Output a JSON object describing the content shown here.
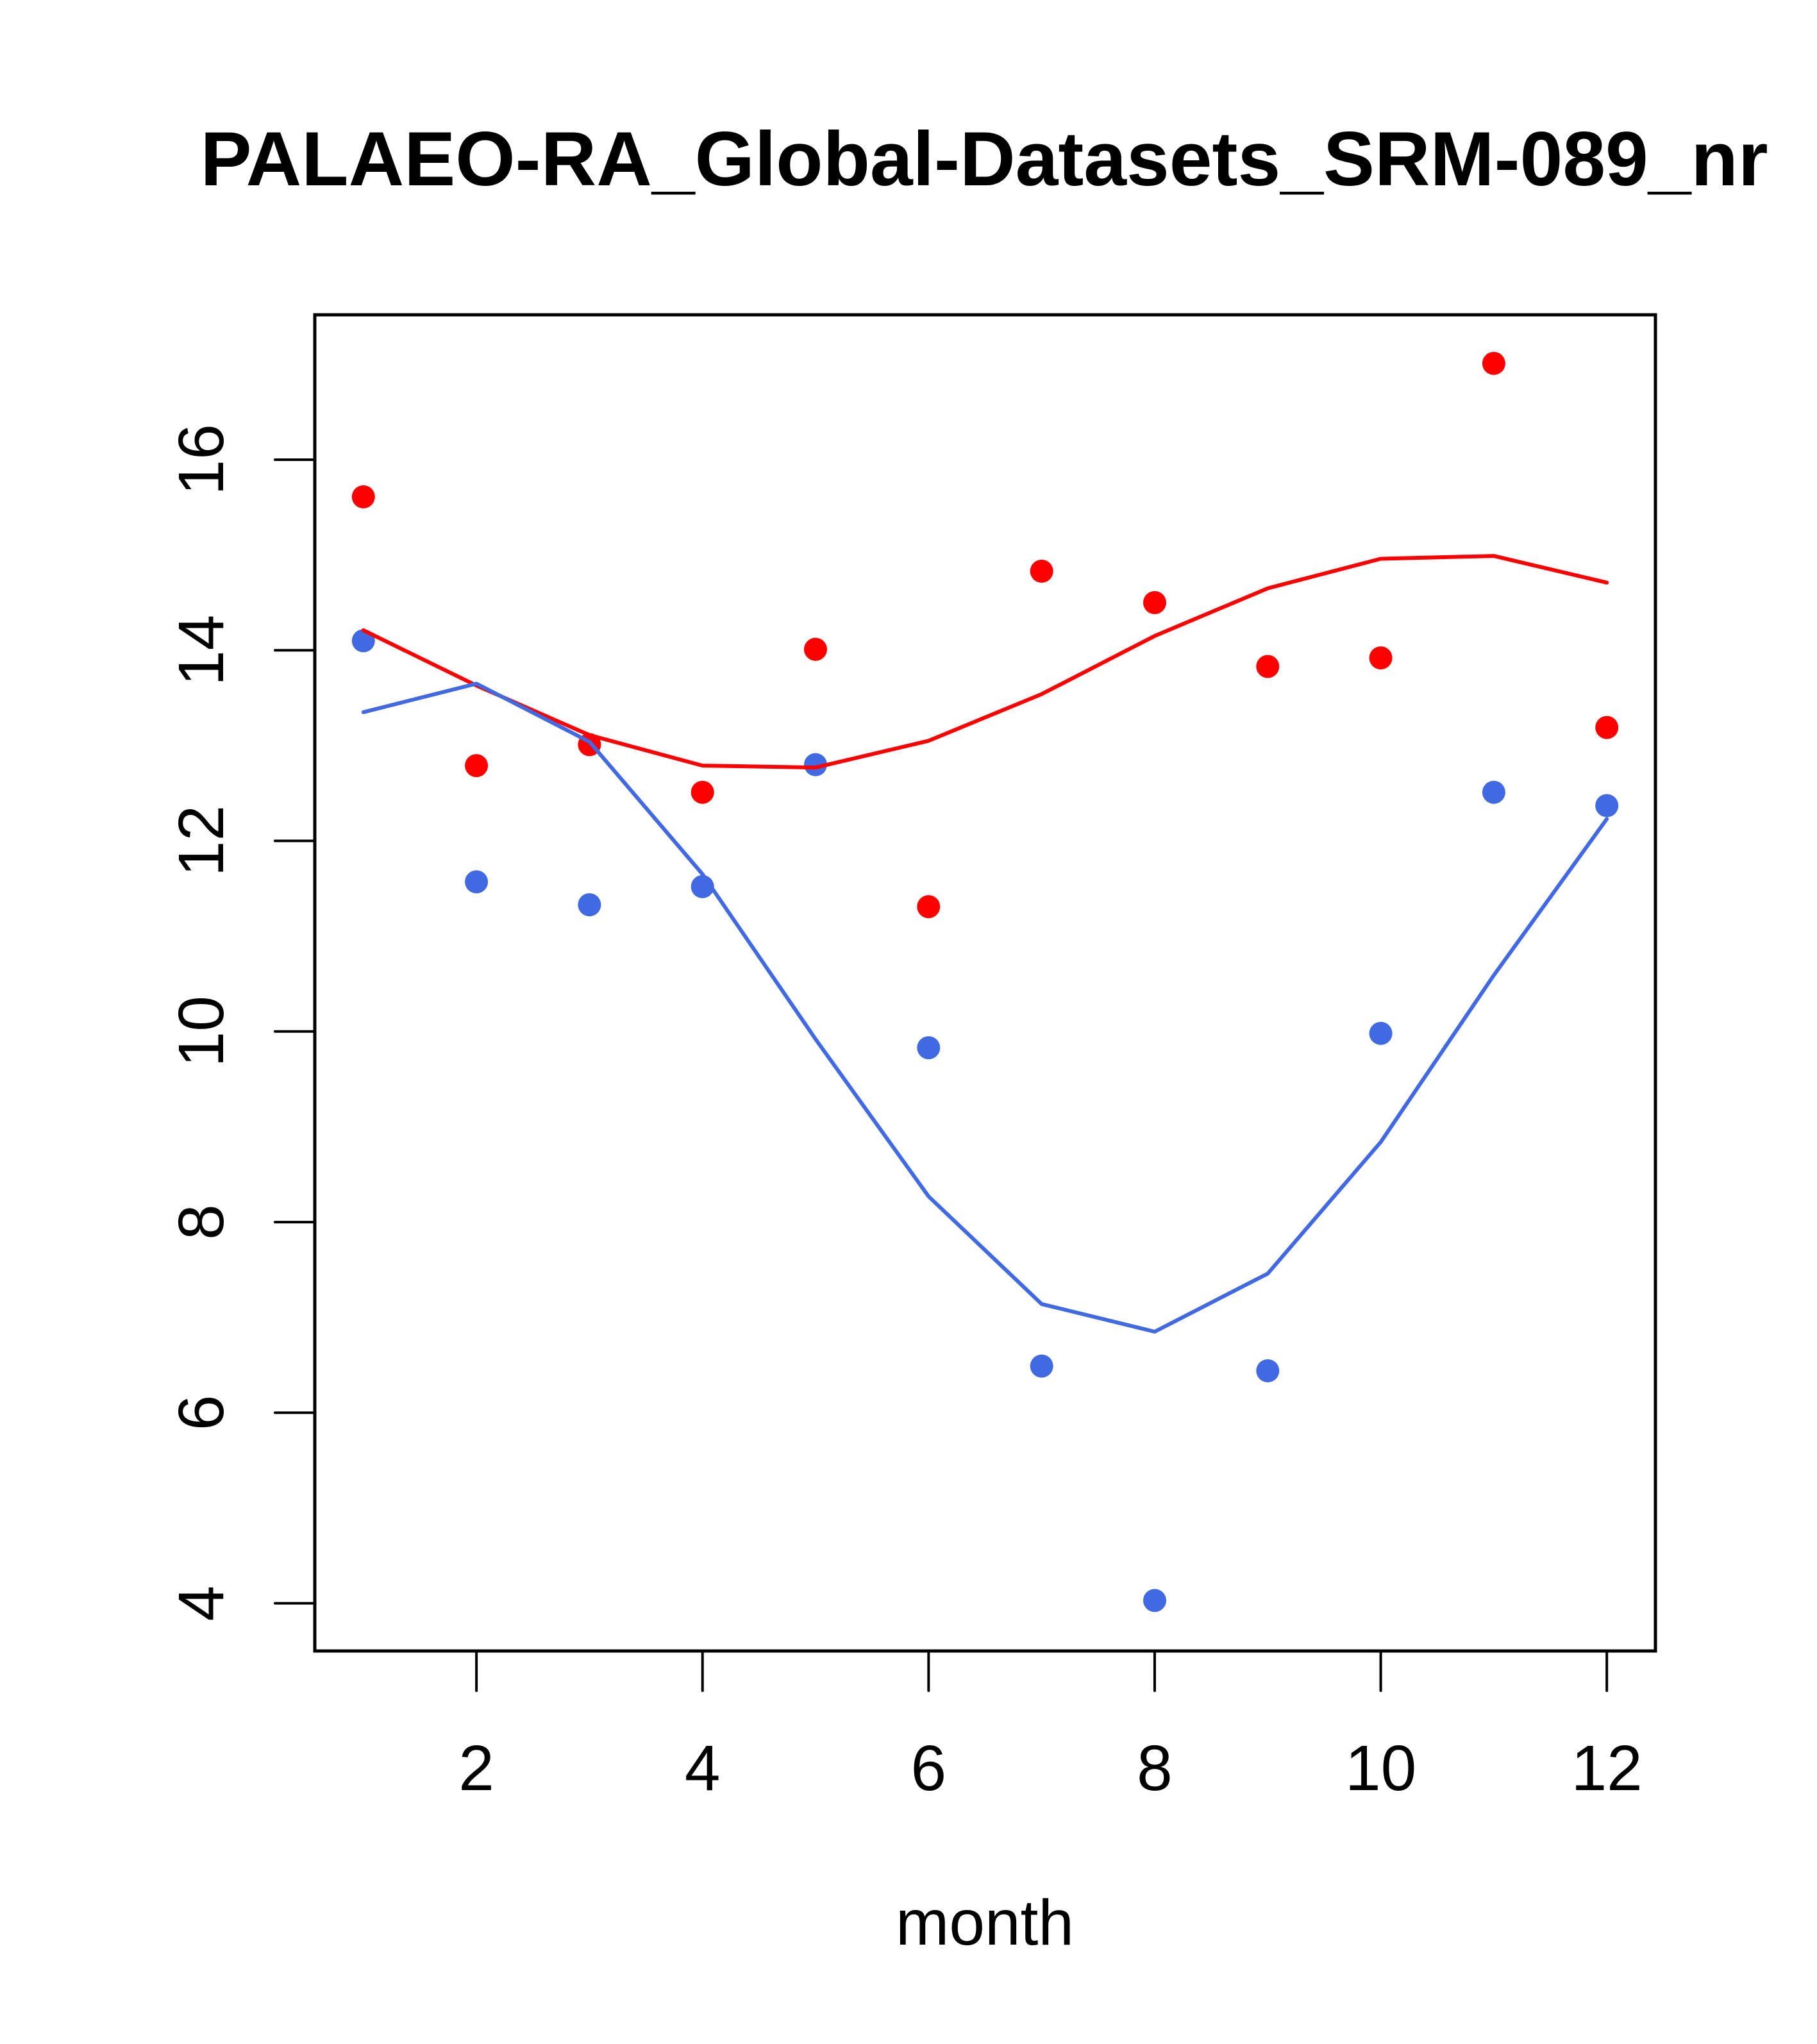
{
  "chart_data": {
    "type": "scatter",
    "title": "PALAEO-RA_Global-Datasets_SRM-089_nr",
    "xlabel": "month",
    "ylabel": "",
    "xlim": [
      0.57,
      12.43
    ],
    "ylim": [
      3.5,
      17.52
    ],
    "x_ticks": [
      2,
      4,
      6,
      8,
      10,
      12
    ],
    "y_ticks": [
      4,
      6,
      8,
      10,
      12,
      14,
      16
    ],
    "grid": false,
    "legend": "none",
    "x": [
      1,
      2,
      3,
      4,
      5,
      6,
      7,
      8,
      9,
      10,
      11,
      12
    ],
    "series": [
      {
        "name": "red points",
        "kind": "points",
        "color": "#FF0000",
        "values": [
          15.61,
          12.79,
          13.01,
          12.51,
          14.01,
          11.31,
          14.83,
          14.5,
          13.83,
          13.92,
          17.01,
          13.19
        ]
      },
      {
        "name": "blue points",
        "kind": "points",
        "color": "#4169E1",
        "values": [
          14.1,
          11.57,
          11.33,
          11.52,
          12.8,
          9.83,
          6.49,
          4.03,
          6.44,
          9.98,
          12.51,
          12.37
        ]
      },
      {
        "name": "red line",
        "kind": "line",
        "color": "#FF0000",
        "values": [
          14.21,
          13.63,
          13.11,
          12.79,
          12.77,
          13.05,
          13.54,
          14.15,
          14.65,
          14.96,
          14.99,
          14.71
        ]
      },
      {
        "name": "blue line",
        "kind": "line",
        "color": "#4169E1",
        "values": [
          13.35,
          13.65,
          13.04,
          11.65,
          9.92,
          8.27,
          7.14,
          6.85,
          7.46,
          8.84,
          10.59,
          12.23
        ]
      }
    ]
  }
}
